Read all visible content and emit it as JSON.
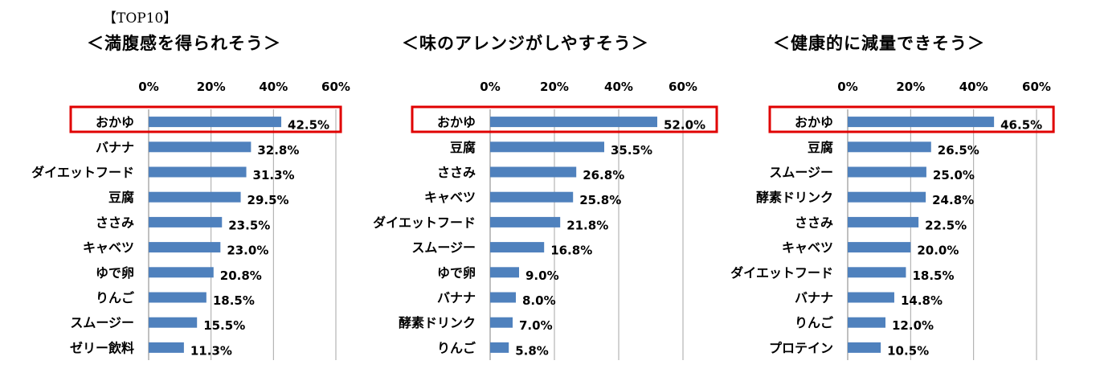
{
  "header_label": "【TOP10】",
  "chart_data": [
    {
      "type": "bar",
      "title": "＜満腹感を得られそう＞",
      "xticks": [
        "0%",
        "20%",
        "40%",
        "60%"
      ],
      "xlim": [
        0,
        60
      ],
      "highlight": "おかゆ",
      "categories": [
        "おかゆ",
        "バナナ",
        "ダイエットフード",
        "豆腐",
        "ささみ",
        "キャベツ",
        "ゆで卵",
        "りんご",
        "スムージー",
        "ゼリー飲料"
      ],
      "values": [
        42.5,
        32.8,
        31.3,
        29.5,
        23.5,
        23.0,
        20.8,
        18.5,
        15.5,
        11.3
      ],
      "labels": [
        "42.5%",
        "32.8%",
        "31.3%",
        "29.5%",
        "23.5%",
        "23.0%",
        "20.8%",
        "18.5%",
        "15.5%",
        "11.3%"
      ]
    },
    {
      "type": "bar",
      "title": "＜味のアレンジがしやすそう＞",
      "xticks": [
        "0%",
        "20%",
        "40%",
        "60%"
      ],
      "xlim": [
        0,
        60
      ],
      "highlight": "おかゆ",
      "categories": [
        "おかゆ",
        "豆腐",
        "ささみ",
        "キャベツ",
        "ダイエットフード",
        "スムージー",
        "ゆで卵",
        "バナナ",
        "酵素ドリンク",
        "りんご"
      ],
      "values": [
        52.0,
        35.5,
        26.8,
        25.8,
        21.8,
        16.8,
        9.0,
        8.0,
        7.0,
        5.8
      ],
      "labels": [
        "52.0%",
        "35.5%",
        "26.8%",
        "25.8%",
        "21.8%",
        "16.8%",
        "9.0%",
        "8.0%",
        "7.0%",
        "5.8%"
      ]
    },
    {
      "type": "bar",
      "title": "＜健康的に減量できそう＞",
      "xticks": [
        "0%",
        "20%",
        "40%",
        "60%"
      ],
      "xlim": [
        0,
        60
      ],
      "highlight": "おかゆ",
      "categories": [
        "おかゆ",
        "豆腐",
        "スムージー",
        "酵素ドリンク",
        "ささみ",
        "キャベツ",
        "ダイエットフード",
        "バナナ",
        "りんご",
        "プロテイン"
      ],
      "values": [
        46.5,
        26.5,
        25.0,
        24.8,
        22.5,
        20.0,
        18.5,
        14.8,
        12.0,
        10.5
      ],
      "labels": [
        "46.5%",
        "26.5%",
        "25.0%",
        "24.8%",
        "22.5%",
        "20.0%",
        "18.5%",
        "14.8%",
        "12.0%",
        "10.5%"
      ]
    }
  ],
  "colors": {
    "bar": "#4f81bd",
    "highlight_box": "#e00000",
    "grid": "#a6a6a6"
  }
}
